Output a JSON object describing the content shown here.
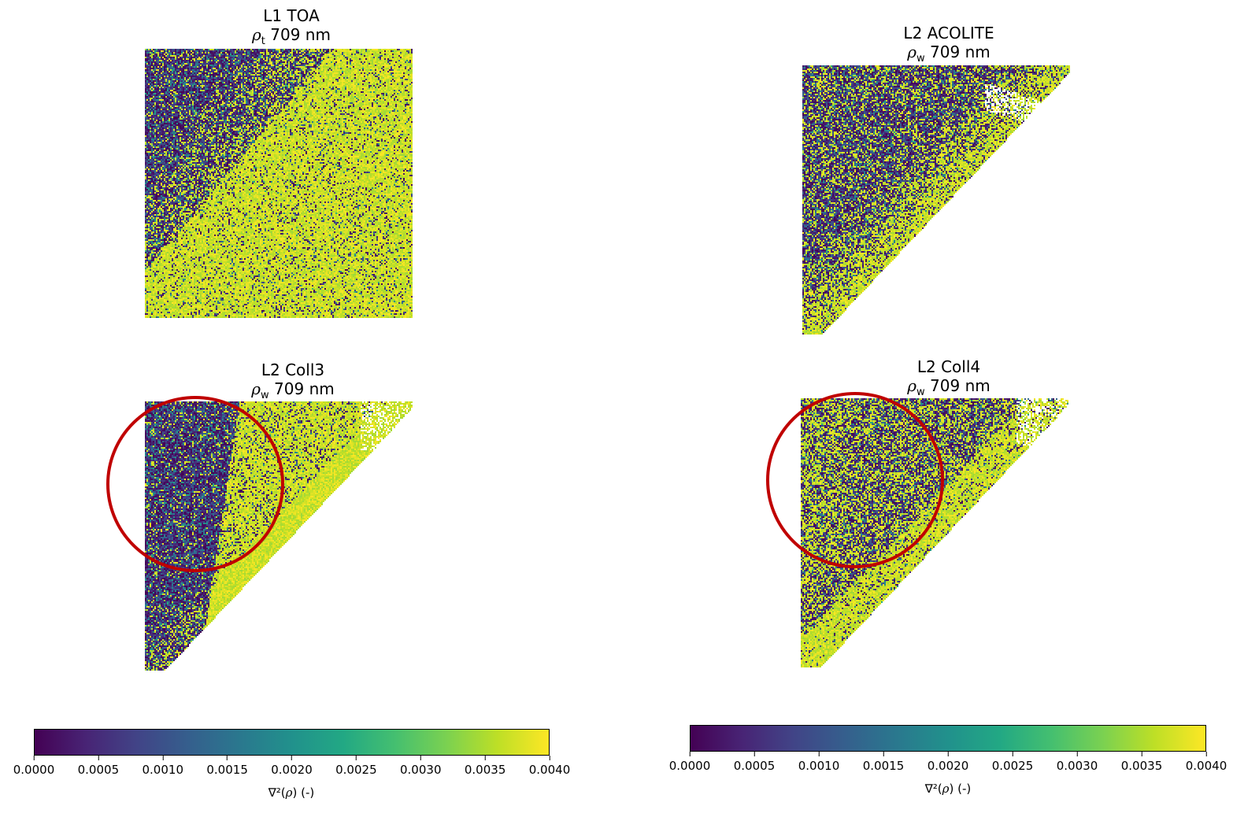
{
  "panels": [
    {
      "id": "l1-toa",
      "title": "L1 TOA",
      "symbol": "ρ",
      "subscript": "t",
      "band": "709 nm"
    },
    {
      "id": "l2-acolite",
      "title": "L2 ACOLITE",
      "symbol": "ρ",
      "subscript": "w",
      "band": "709 nm"
    },
    {
      "id": "l2-coll3",
      "title": "L2 Coll3",
      "symbol": "ρ",
      "subscript": "w",
      "band": "709 nm"
    },
    {
      "id": "l2-coll4",
      "title": "L2 Coll4",
      "symbol": "ρ",
      "subscript": "w",
      "band": "709 nm"
    }
  ],
  "colorbars": [
    {
      "ticks": [
        "0.0000",
        "0.0005",
        "0.0010",
        "0.0015",
        "0.0020",
        "0.0025",
        "0.0030",
        "0.0035",
        "0.0040"
      ],
      "label_prefix": "∇²(",
      "label_symbol": "ρ",
      "label_suffix": ") (-)"
    },
    {
      "ticks": [
        "0.0000",
        "0.0005",
        "0.0010",
        "0.0015",
        "0.0020",
        "0.0025",
        "0.0030",
        "0.0035",
        "0.0040"
      ],
      "label_prefix": "∇²(",
      "label_symbol": "ρ",
      "label_suffix": ") (-)"
    }
  ],
  "colormap": "viridis",
  "colors": {
    "viridis_low": "#440154",
    "viridis_mid": "#21918c",
    "viridis_high": "#fde725",
    "annotation_circle": "#c00000"
  }
}
